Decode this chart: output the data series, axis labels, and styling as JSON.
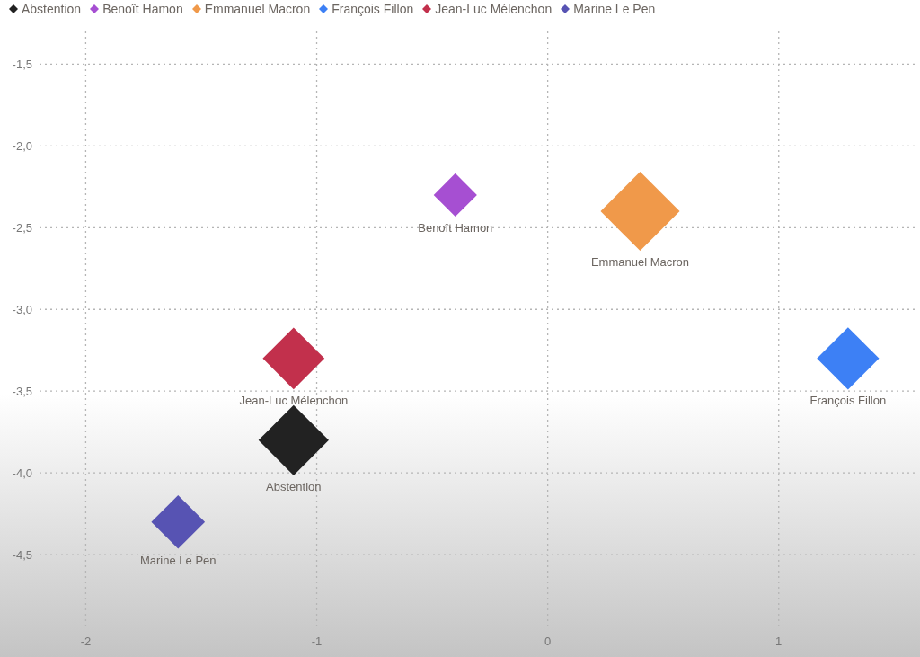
{
  "chart_data": {
    "type": "bubble",
    "marker": "diamond",
    "legend": "top left",
    "grid": true,
    "xlim": [
      -2.2,
      1.6
    ],
    "xticks": [
      -2,
      -1,
      0,
      1
    ],
    "ylim": [
      -4.95,
      -1.3
    ],
    "yticks": [
      {
        "value": -1.5,
        "label": "-1,5"
      },
      {
        "value": -2,
        "label": "-2,0"
      },
      {
        "value": -2.5,
        "label": "-2,5"
      },
      {
        "value": -3,
        "label": "-3,0"
      },
      {
        "value": -3.5,
        "label": "-3,5"
      },
      {
        "value": -4,
        "label": "-4,0"
      },
      {
        "value": -4.5,
        "label": "-4,5"
      }
    ],
    "series": [
      {
        "name": "Abstention",
        "color": "#222222",
        "x": [
          -1.1
        ],
        "values": [
          -3.8
        ],
        "sizes": [
          0.79
        ]
      },
      {
        "name": "Benoît Hamon",
        "color": "#a64fd2",
        "x": [
          -0.4
        ],
        "values": [
          -2.3
        ],
        "sizes": [
          0.3
        ]
      },
      {
        "name": "Emmanuel Macron",
        "color": "#f0994a",
        "x": [
          0.4
        ],
        "values": [
          -2.4
        ],
        "sizes": [
          1
        ]
      },
      {
        "name": "François Fillon",
        "color": "#3d80f5",
        "x": [
          1.3
        ],
        "values": [
          -3.3
        ],
        "sizes": [
          0.62
        ]
      },
      {
        "name": "Jean-Luc Mélenchon",
        "color": "#c2304c",
        "x": [
          -1.1
        ],
        "values": [
          -3.3
        ],
        "sizes": [
          0.61
        ]
      },
      {
        "name": "Marine Le Pen",
        "color": "#5753b3",
        "x": [
          -1.6
        ],
        "values": [
          -4.3
        ],
        "sizes": [
          0.46
        ]
      }
    ]
  }
}
